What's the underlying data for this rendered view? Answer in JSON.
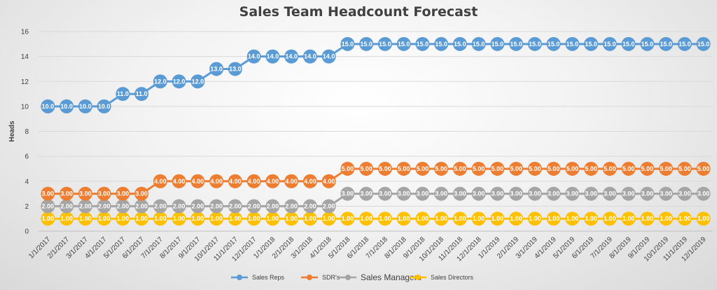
{
  "chart_data": {
    "type": "line",
    "title": "Sales Team Headcount Forecast",
    "ylabel": "Heads",
    "xlabel": "",
    "ylim": [
      0,
      16
    ],
    "yticks": [
      0,
      2,
      4,
      6,
      8,
      10,
      12,
      14,
      16
    ],
    "grid": true,
    "legend_position": "bottom",
    "categories": [
      "1/1/2017",
      "2/1/2017",
      "3/1/2017",
      "4/1/2017",
      "5/1/2017",
      "6/1/2017",
      "7/1/2017",
      "8/1/2017",
      "9/1/2017",
      "10/1/2017",
      "11/1/2017",
      "12/1/2017",
      "1/1/2018",
      "2/1/2018",
      "3/1/2018",
      "4/1/2018",
      "5/1/2018",
      "6/1/2018",
      "7/1/2018",
      "8/1/2018",
      "9/1/2018",
      "10/1/2018",
      "11/1/2018",
      "12/1/2018",
      "1/1/2019",
      "2/1/2019",
      "3/1/2019",
      "4/1/2019",
      "5/1/2019",
      "6/1/2019",
      "7/1/2019",
      "8/1/2019",
      "9/1/2019",
      "10/1/2019",
      "11/1/2019",
      "12/1/2019"
    ],
    "series": [
      {
        "name": "Sales Reps",
        "color": "#5b9bd5",
        "label_format": "0.0",
        "values": [
          10,
          10,
          10,
          10,
          11,
          11,
          12,
          12,
          12,
          13,
          13,
          14,
          14,
          14,
          14,
          14,
          15,
          15,
          15,
          15,
          15,
          15,
          15,
          15,
          15,
          15,
          15,
          15,
          15,
          15,
          15,
          15,
          15,
          15,
          15,
          15
        ]
      },
      {
        "name": "SDR's",
        "color": "#ed7d31",
        "label_format": "0.00",
        "values": [
          3,
          3,
          3,
          3,
          3,
          3,
          4,
          4,
          4,
          4,
          4,
          4,
          4,
          4,
          4,
          4,
          5,
          5,
          5,
          5,
          5,
          5,
          5,
          5,
          5,
          5,
          5,
          5,
          5,
          5,
          5,
          5,
          5,
          5,
          5,
          5
        ]
      },
      {
        "name": "Sales Managers",
        "color": "#a5a5a5",
        "label_format": "0.00",
        "values": [
          2,
          2,
          2,
          2,
          2,
          2,
          2,
          2,
          2,
          2,
          2,
          2,
          2,
          2,
          2,
          2,
          3,
          3,
          3,
          3,
          3,
          3,
          3,
          3,
          3,
          3,
          3,
          3,
          3,
          3,
          3,
          3,
          3,
          3,
          3,
          3
        ]
      },
      {
        "name": "Sales Directors",
        "color": "#ffc000",
        "label_format": "0.00",
        "values": [
          1,
          1,
          1,
          1,
          1,
          1,
          1,
          1,
          1,
          1,
          1,
          1,
          1,
          1,
          1,
          1,
          1,
          1,
          1,
          1,
          1,
          1,
          1,
          1,
          1,
          1,
          1,
          1,
          1,
          1,
          1,
          1,
          1,
          1,
          1,
          1
        ]
      }
    ]
  }
}
